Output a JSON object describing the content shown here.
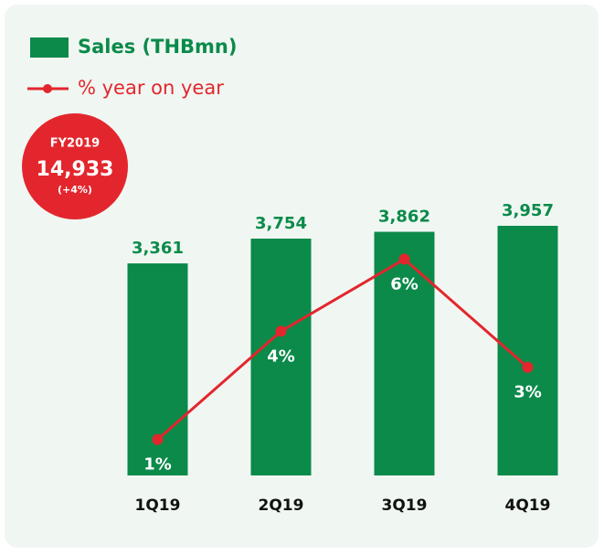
{
  "chart_data": {
    "type": "bar",
    "categories": [
      "1Q19",
      "2Q19",
      "3Q19",
      "4Q19"
    ],
    "series": [
      {
        "name": "Sales (THBmn)",
        "type": "bar",
        "color": "#0b8a4a",
        "values": [
          3361,
          3754,
          3862,
          3957
        ],
        "value_labels": [
          "3,361",
          "3,754",
          "3,862",
          "3,957"
        ]
      },
      {
        "name": "% year on year",
        "type": "line",
        "axis": "y2",
        "color": "#e3262d",
        "values": [
          1,
          4,
          6,
          3
        ],
        "value_labels": [
          "1%",
          "4%",
          "6%",
          "3%"
        ]
      }
    ],
    "ylim": [
      0,
      4000
    ],
    "y2lim": [
      0,
      7
    ],
    "annotation": {
      "label": "FY2019",
      "value": "14,933",
      "change": "(+4%)"
    }
  }
}
